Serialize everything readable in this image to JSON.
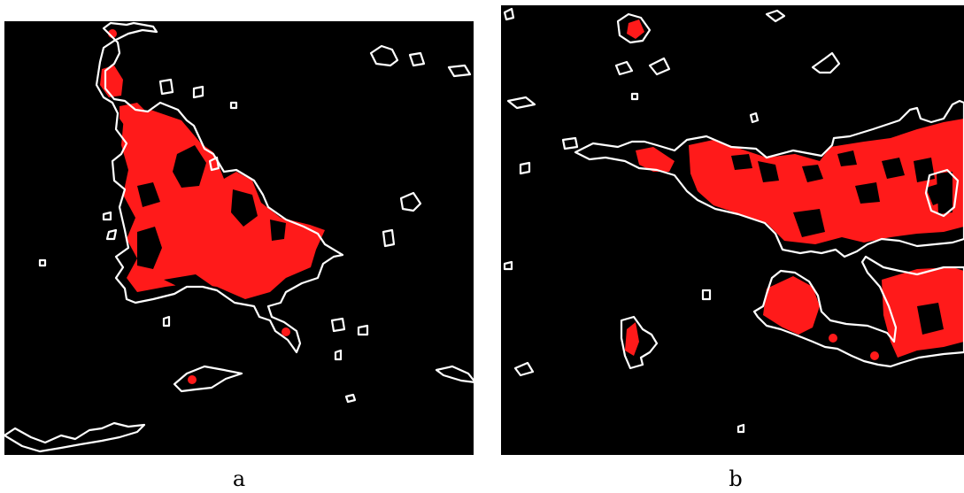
{
  "panels": [
    {
      "caption": "a",
      "colors": {
        "background": "#000000",
        "region": "#ff1a1a",
        "outline": "#ffffff"
      }
    },
    {
      "caption": "b",
      "colors": {
        "background": "#000000",
        "region": "#ff1a1a",
        "outline": "#ffffff"
      }
    }
  ]
}
